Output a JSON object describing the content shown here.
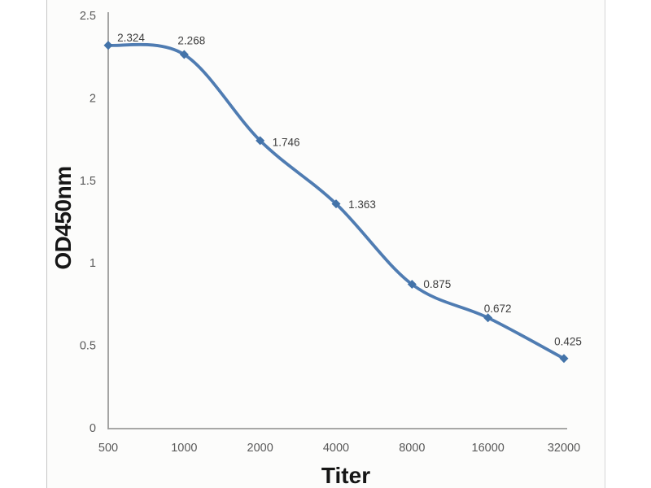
{
  "chart_data": {
    "type": "line",
    "title": "",
    "xlabel": "Titer",
    "ylabel": "OD450nm",
    "x": [
      500,
      1000,
      2000,
      4000,
      8000,
      16000,
      32000
    ],
    "x_tick_labels": [
      "500",
      "1000",
      "2000",
      "4000",
      "8000",
      "16000",
      "32000"
    ],
    "series": [
      {
        "name": "OD450nm",
        "values": [
          2.324,
          2.268,
          1.746,
          1.363,
          0.875,
          0.672,
          0.425
        ]
      }
    ],
    "point_labels": [
      "2.324",
      "2.268",
      "1.746",
      "1.363",
      "0.875",
      "0.672",
      "0.425"
    ],
    "ylim": [
      0,
      2.5
    ],
    "yticks": [
      0,
      0.5,
      1,
      1.5,
      2,
      2.5
    ],
    "ytick_labels": [
      "0",
      "0.5",
      "1",
      "1.5",
      "2",
      "2.5"
    ],
    "x_scale": "log2-categorical",
    "grid": false,
    "legend": "none",
    "line_style": "smooth",
    "marker": "diamond",
    "line_color": "#4f7cb2",
    "marker_color": "#4373a9",
    "axis_color": "#9b9b9b",
    "tick_label_color": "#595959",
    "data_label_color": "#3d3d3d",
    "panel_background": "#fcfcfb",
    "panel_border_color": "#c9c9c9"
  }
}
